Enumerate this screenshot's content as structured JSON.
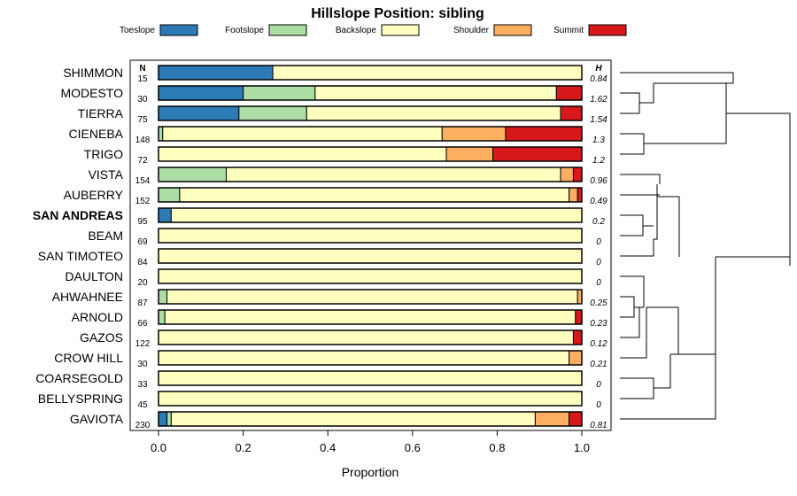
{
  "chart_data": {
    "type": "stacked-bar-horizontal",
    "title": "Hillslope Position: sibling",
    "xlabel": "Proportion",
    "xlim": [
      0,
      1
    ],
    "xticks": [
      "0.0",
      "0.2",
      "0.4",
      "0.6",
      "0.8",
      "1.0"
    ],
    "n_header": "N",
    "h_header": "H",
    "legend_position": "top",
    "highlighted_category": "SAN ANDREAS",
    "classes": [
      {
        "name": "Toeslope",
        "color": "#2c7bb6"
      },
      {
        "name": "Footslope",
        "color": "#abdda4"
      },
      {
        "name": "Backslope",
        "color": "#ffffbf"
      },
      {
        "name": "Shoulder",
        "color": "#fdae61"
      },
      {
        "name": "Summit",
        "color": "#d7191c"
      }
    ],
    "categories": [
      {
        "name": "SHIMMON",
        "n": "15",
        "h": "0.84",
        "values": [
          0.27,
          0.0,
          0.73,
          0.0,
          0.0
        ]
      },
      {
        "name": "MODESTO",
        "n": "30",
        "h": "1.62",
        "values": [
          0.2,
          0.17,
          0.57,
          0.0,
          0.06
        ]
      },
      {
        "name": "TIERRA",
        "n": "75",
        "h": "1.54",
        "values": [
          0.19,
          0.16,
          0.6,
          0.0,
          0.05
        ]
      },
      {
        "name": "CIENEBA",
        "n": "148",
        "h": "1.3",
        "values": [
          0.0,
          0.01,
          0.66,
          0.15,
          0.18
        ]
      },
      {
        "name": "TRIGO",
        "n": "72",
        "h": "1.2",
        "values": [
          0.0,
          0.0,
          0.68,
          0.11,
          0.21
        ]
      },
      {
        "name": "VISTA",
        "n": "154",
        "h": "0.96",
        "values": [
          0.0,
          0.16,
          0.79,
          0.03,
          0.02
        ]
      },
      {
        "name": "AUBERRY",
        "n": "152",
        "h": "0.49",
        "values": [
          0.0,
          0.05,
          0.92,
          0.02,
          0.01
        ]
      },
      {
        "name": "SAN ANDREAS",
        "n": "95",
        "h": "0.2",
        "values": [
          0.03,
          0.0,
          0.97,
          0.0,
          0.0
        ]
      },
      {
        "name": "BEAM",
        "n": "69",
        "h": "0",
        "values": [
          0.0,
          0.0,
          1.0,
          0.0,
          0.0
        ]
      },
      {
        "name": "SAN TIMOTEO",
        "n": "84",
        "h": "0",
        "values": [
          0.0,
          0.0,
          1.0,
          0.0,
          0.0
        ]
      },
      {
        "name": "DAULTON",
        "n": "20",
        "h": "0",
        "values": [
          0.0,
          0.0,
          1.0,
          0.0,
          0.0
        ]
      },
      {
        "name": "AHWAHNEE",
        "n": "87",
        "h": "0.25",
        "values": [
          0.0,
          0.02,
          0.97,
          0.01,
          0.0
        ]
      },
      {
        "name": "ARNOLD",
        "n": "66",
        "h": "0.23",
        "values": [
          0.0,
          0.015,
          0.97,
          0.0,
          0.015
        ]
      },
      {
        "name": "GAZOS",
        "n": "122",
        "h": "0.12",
        "values": [
          0.0,
          0.0,
          0.98,
          0.0,
          0.02
        ]
      },
      {
        "name": "CROW HILL",
        "n": "30",
        "h": "0.21",
        "values": [
          0.0,
          0.0,
          0.97,
          0.03,
          0.0
        ]
      },
      {
        "name": "COARSEGOLD",
        "n": "33",
        "h": "0",
        "values": [
          0.0,
          0.0,
          1.0,
          0.0,
          0.0
        ]
      },
      {
        "name": "BELLYSPRING",
        "n": "45",
        "h": "0",
        "values": [
          0.0,
          0.0,
          1.0,
          0.0,
          0.0
        ]
      },
      {
        "name": "GAVIOTA",
        "n": "230",
        "h": "0.81",
        "values": [
          0.02,
          0.01,
          0.86,
          0.08,
          0.03
        ]
      }
    ]
  }
}
